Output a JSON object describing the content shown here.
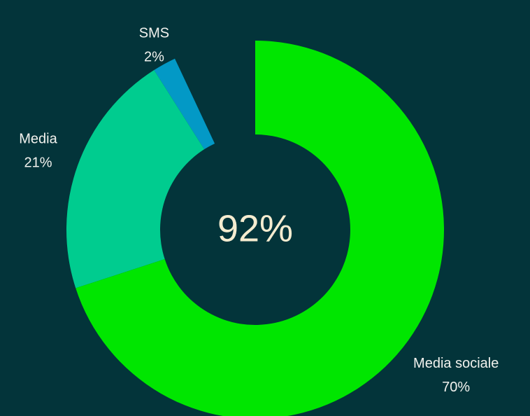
{
  "chart_data": {
    "type": "donut",
    "categories": [
      "Media sociale",
      "Media",
      "SMS"
    ],
    "values": [
      70,
      21,
      2
    ],
    "value_labels": [
      "70%",
      "21%",
      "2%"
    ],
    "colors": [
      "#00e600",
      "#00cc8f",
      "#0399c6"
    ],
    "center_label": "92%"
  }
}
